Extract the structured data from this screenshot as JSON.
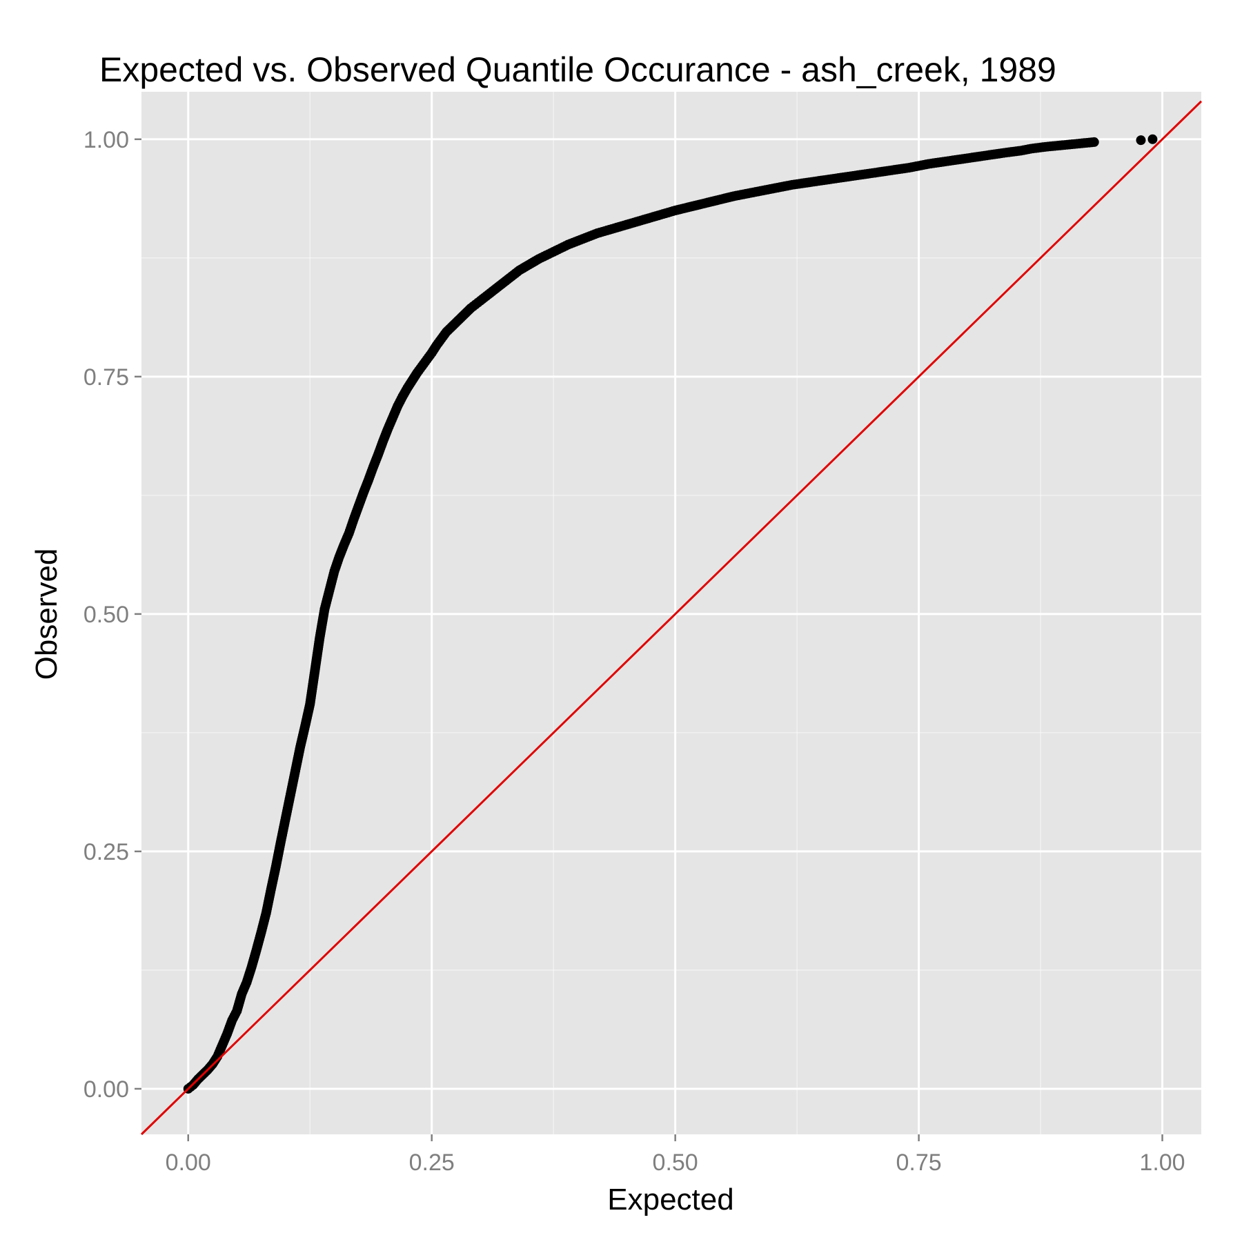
{
  "chart_data": {
    "type": "scatter",
    "title": "Expected vs. Observed Quantile Occurance - ash_creek, 1989",
    "xlabel": "Expected",
    "ylabel": "Observed",
    "xlim": [
      -0.048,
      1.04
    ],
    "ylim": [
      -0.048,
      1.05
    ],
    "x_ticks": [
      0,
      0.25,
      0.5,
      0.75,
      1
    ],
    "y_ticks": [
      0,
      0.25,
      0.5,
      0.75,
      1
    ],
    "x_tick_labels": [
      "0.00",
      "0.25",
      "0.50",
      "0.75",
      "1.00"
    ],
    "y_tick_labels": [
      "0.00",
      "0.25",
      "0.50",
      "0.75",
      "1.00"
    ],
    "grid": true,
    "legend": "none",
    "colors": {
      "panel_background": "#e5e5e5",
      "grid_line": "#ffffff",
      "points": "#000000",
      "reference_line": "#e00000",
      "tick_label": "#7f7f7f"
    },
    "series": [
      {
        "kind": "points",
        "x": [
          0,
          0.005,
          0.01,
          0.015,
          0.02,
          0.025,
          0.03,
          0.035,
          0.04,
          0.045,
          0.05,
          0.055,
          0.06,
          0.065,
          0.07,
          0.075,
          0.08,
          0.085,
          0.09,
          0.095,
          0.1,
          0.105,
          0.11,
          0.115,
          0.12,
          0.125,
          0.13,
          0.135,
          0.14,
          0.145,
          0.15,
          0.155,
          0.16,
          0.165,
          0.17,
          0.175,
          0.18,
          0.185,
          0.19,
          0.195,
          0.2,
          0.205,
          0.21,
          0.215,
          0.22,
          0.225,
          0.23,
          0.235,
          0.24,
          0.245,
          0.25,
          0.255,
          0.26,
          0.265,
          0.27,
          0.275,
          0.28,
          0.285,
          0.29,
          0.295,
          0.3,
          0.31,
          0.32,
          0.33,
          0.34,
          0.35,
          0.36,
          0.37,
          0.38,
          0.39,
          0.4,
          0.41,
          0.42,
          0.43,
          0.44,
          0.45,
          0.46,
          0.47,
          0.48,
          0.49,
          0.5,
          0.52,
          0.54,
          0.56,
          0.58,
          0.6,
          0.62,
          0.64,
          0.66,
          0.68,
          0.7,
          0.72,
          0.74,
          0.75,
          0.76,
          0.78,
          0.8,
          0.82,
          0.84,
          0.855,
          0.865,
          0.88,
          0.9,
          0.91,
          0.92,
          0.93,
          0.978,
          0.99
        ],
        "y": [
          0,
          0.004,
          0.01,
          0.015,
          0.02,
          0.026,
          0.034,
          0.046,
          0.058,
          0.072,
          0.082,
          0.1,
          0.112,
          0.128,
          0.146,
          0.165,
          0.185,
          0.21,
          0.234,
          0.26,
          0.285,
          0.31,
          0.335,
          0.36,
          0.382,
          0.405,
          0.44,
          0.475,
          0.505,
          0.525,
          0.545,
          0.56,
          0.573,
          0.585,
          0.6,
          0.614,
          0.628,
          0.641,
          0.655,
          0.668,
          0.682,
          0.695,
          0.707,
          0.719,
          0.729,
          0.738,
          0.746,
          0.754,
          0.761,
          0.768,
          0.775,
          0.783,
          0.79,
          0.797,
          0.802,
          0.807,
          0.812,
          0.817,
          0.822,
          0.826,
          0.83,
          0.838,
          0.846,
          0.854,
          0.862,
          0.868,
          0.874,
          0.879,
          0.884,
          0.889,
          0.893,
          0.897,
          0.901,
          0.904,
          0.907,
          0.91,
          0.913,
          0.916,
          0.919,
          0.922,
          0.925,
          0.93,
          0.935,
          0.94,
          0.944,
          0.948,
          0.952,
          0.955,
          0.958,
          0.961,
          0.964,
          0.967,
          0.97,
          0.972,
          0.974,
          0.977,
          0.98,
          0.983,
          0.986,
          0.988,
          0.99,
          0.992,
          0.994,
          0.995,
          0.996,
          0.997,
          0.999,
          1.0
        ]
      },
      {
        "kind": "reference-line",
        "x": [
          -0.048,
          1.04
        ],
        "y": [
          -0.048,
          1.04
        ]
      }
    ]
  }
}
